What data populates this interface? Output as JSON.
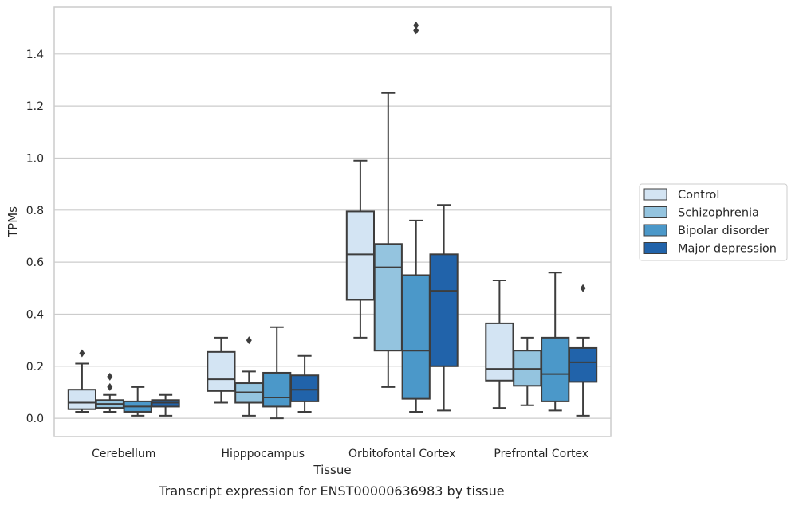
{
  "caption": "Transcript expression for ENST00000636983 by tissue",
  "chart_data": {
    "type": "box",
    "title": "",
    "xlabel": "Tissue",
    "ylabel": "TPMs",
    "ylim": [
      -0.07,
      1.58
    ],
    "yticks": [
      0.0,
      0.2,
      0.4,
      0.6,
      0.8,
      1.0,
      1.2,
      1.4
    ],
    "ytick_labels": [
      "0.0",
      "0.2",
      "0.4",
      "0.6",
      "0.8",
      "1.0",
      "1.2",
      "1.4"
    ],
    "grid": "horizontal",
    "legend_position": "right",
    "categories": [
      "Cerebellum",
      "Hipppocampus",
      "Orbitofontal Cortex",
      "Prefrontal Cortex"
    ],
    "series": [
      {
        "name": "Control",
        "color": "#d3e4f3",
        "boxes": [
          {
            "whislo": 0.025,
            "q1": 0.035,
            "med": 0.06,
            "q3": 0.11,
            "whishi": 0.21,
            "fliers": [
              0.25
            ]
          },
          {
            "whislo": 0.06,
            "q1": 0.105,
            "med": 0.15,
            "q3": 0.255,
            "whishi": 0.31,
            "fliers": []
          },
          {
            "whislo": 0.31,
            "q1": 0.455,
            "med": 0.63,
            "q3": 0.795,
            "whishi": 0.99,
            "fliers": []
          },
          {
            "whislo": 0.04,
            "q1": 0.145,
            "med": 0.19,
            "q3": 0.365,
            "whishi": 0.53,
            "fliers": []
          }
        ]
      },
      {
        "name": "Schizophrenia",
        "color": "#94c4df",
        "boxes": [
          {
            "whislo": 0.025,
            "q1": 0.04,
            "med": 0.055,
            "q3": 0.07,
            "whishi": 0.09,
            "fliers": [
              0.12,
              0.16
            ]
          },
          {
            "whislo": 0.01,
            "q1": 0.06,
            "med": 0.1,
            "q3": 0.135,
            "whishi": 0.18,
            "fliers": [
              0.3
            ]
          },
          {
            "whislo": 0.12,
            "q1": 0.26,
            "med": 0.58,
            "q3": 0.67,
            "whishi": 1.25,
            "fliers": []
          },
          {
            "whislo": 0.05,
            "q1": 0.125,
            "med": 0.19,
            "q3": 0.26,
            "whishi": 0.31,
            "fliers": []
          }
        ]
      },
      {
        "name": "Bipolar disorder",
        "color": "#4b98c9",
        "boxes": [
          {
            "whislo": 0.01,
            "q1": 0.025,
            "med": 0.045,
            "q3": 0.065,
            "whishi": 0.12,
            "fliers": []
          },
          {
            "whislo": 0.0,
            "q1": 0.045,
            "med": 0.08,
            "q3": 0.175,
            "whishi": 0.35,
            "fliers": []
          },
          {
            "whislo": 0.025,
            "q1": 0.075,
            "med": 0.26,
            "q3": 0.55,
            "whishi": 0.76,
            "fliers": [
              1.49,
              1.51
            ]
          },
          {
            "whislo": 0.03,
            "q1": 0.065,
            "med": 0.17,
            "q3": 0.31,
            "whishi": 0.56,
            "fliers": []
          }
        ]
      },
      {
        "name": "Major depression",
        "color": "#2163aa",
        "boxes": [
          {
            "whislo": 0.01,
            "q1": 0.045,
            "med": 0.06,
            "q3": 0.07,
            "whishi": 0.09,
            "fliers": []
          },
          {
            "whislo": 0.025,
            "q1": 0.065,
            "med": 0.11,
            "q3": 0.165,
            "whishi": 0.24,
            "fliers": []
          },
          {
            "whislo": 0.03,
            "q1": 0.2,
            "med": 0.49,
            "q3": 0.63,
            "whishi": 0.82,
            "fliers": []
          },
          {
            "whislo": 0.01,
            "q1": 0.14,
            "med": 0.215,
            "q3": 0.27,
            "whishi": 0.31,
            "fliers": [
              0.5
            ]
          }
        ]
      }
    ]
  }
}
